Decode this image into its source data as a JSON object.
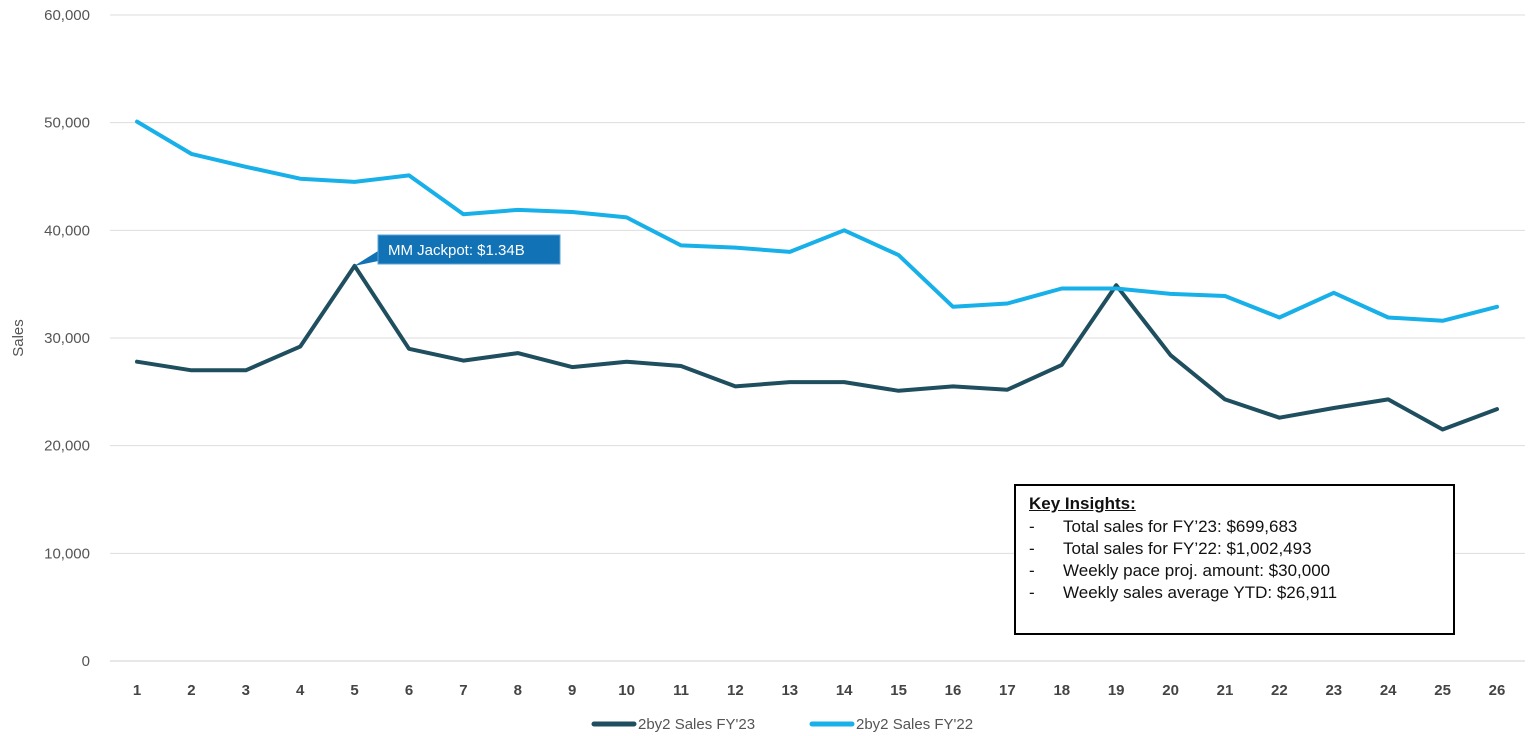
{
  "chart_data": {
    "type": "line",
    "title": "",
    "xlabel": "",
    "ylabel": "Sales",
    "ylim": [
      0,
      60000
    ],
    "yticks": [
      0,
      10000,
      20000,
      30000,
      40000,
      50000,
      60000
    ],
    "ytick_labels": [
      "0",
      "10,000",
      "20,000",
      "30,000",
      "40,000",
      "50,000",
      "60,000"
    ],
    "categories": [
      "1",
      "2",
      "3",
      "4",
      "5",
      "6",
      "7",
      "8",
      "9",
      "10",
      "11",
      "12",
      "13",
      "14",
      "15",
      "16",
      "17",
      "18",
      "19",
      "20",
      "21",
      "22",
      "23",
      "24",
      "25",
      "26"
    ],
    "grid": true,
    "legend_position": "bottom",
    "series": [
      {
        "name": "2by2 Sales FY'23",
        "color": "#1f4e5f",
        "values": [
          27800,
          27000,
          27000,
          29200,
          36700,
          29000,
          27900,
          28600,
          27300,
          27800,
          27400,
          25500,
          25900,
          25900,
          25100,
          25500,
          25200,
          27500,
          34900,
          28400,
          24300,
          22600,
          23500,
          24300,
          21500,
          23400
        ]
      },
      {
        "name": "2by2 Sales FY'22",
        "color": "#17b0e8",
        "values": [
          50100,
          47100,
          45900,
          44800,
          44500,
          45100,
          41500,
          41900,
          41700,
          41200,
          38600,
          38400,
          38000,
          40000,
          37700,
          32900,
          33200,
          34600,
          34600,
          34100,
          33900,
          31900,
          34200,
          31900,
          31600,
          32900
        ]
      }
    ],
    "annotations": [
      {
        "text": "MM Jackpot: $1.34B",
        "series": 0,
        "x": "5",
        "box_color": "#1172b5"
      }
    ]
  },
  "insights": {
    "title": "Key Insights:",
    "items": [
      "Total sales for FY’23: $699,683",
      "Total sales for FY’22: $1,002,493",
      "Weekly pace proj. amount: $30,000",
      "Weekly sales average YTD: $26,911"
    ]
  }
}
